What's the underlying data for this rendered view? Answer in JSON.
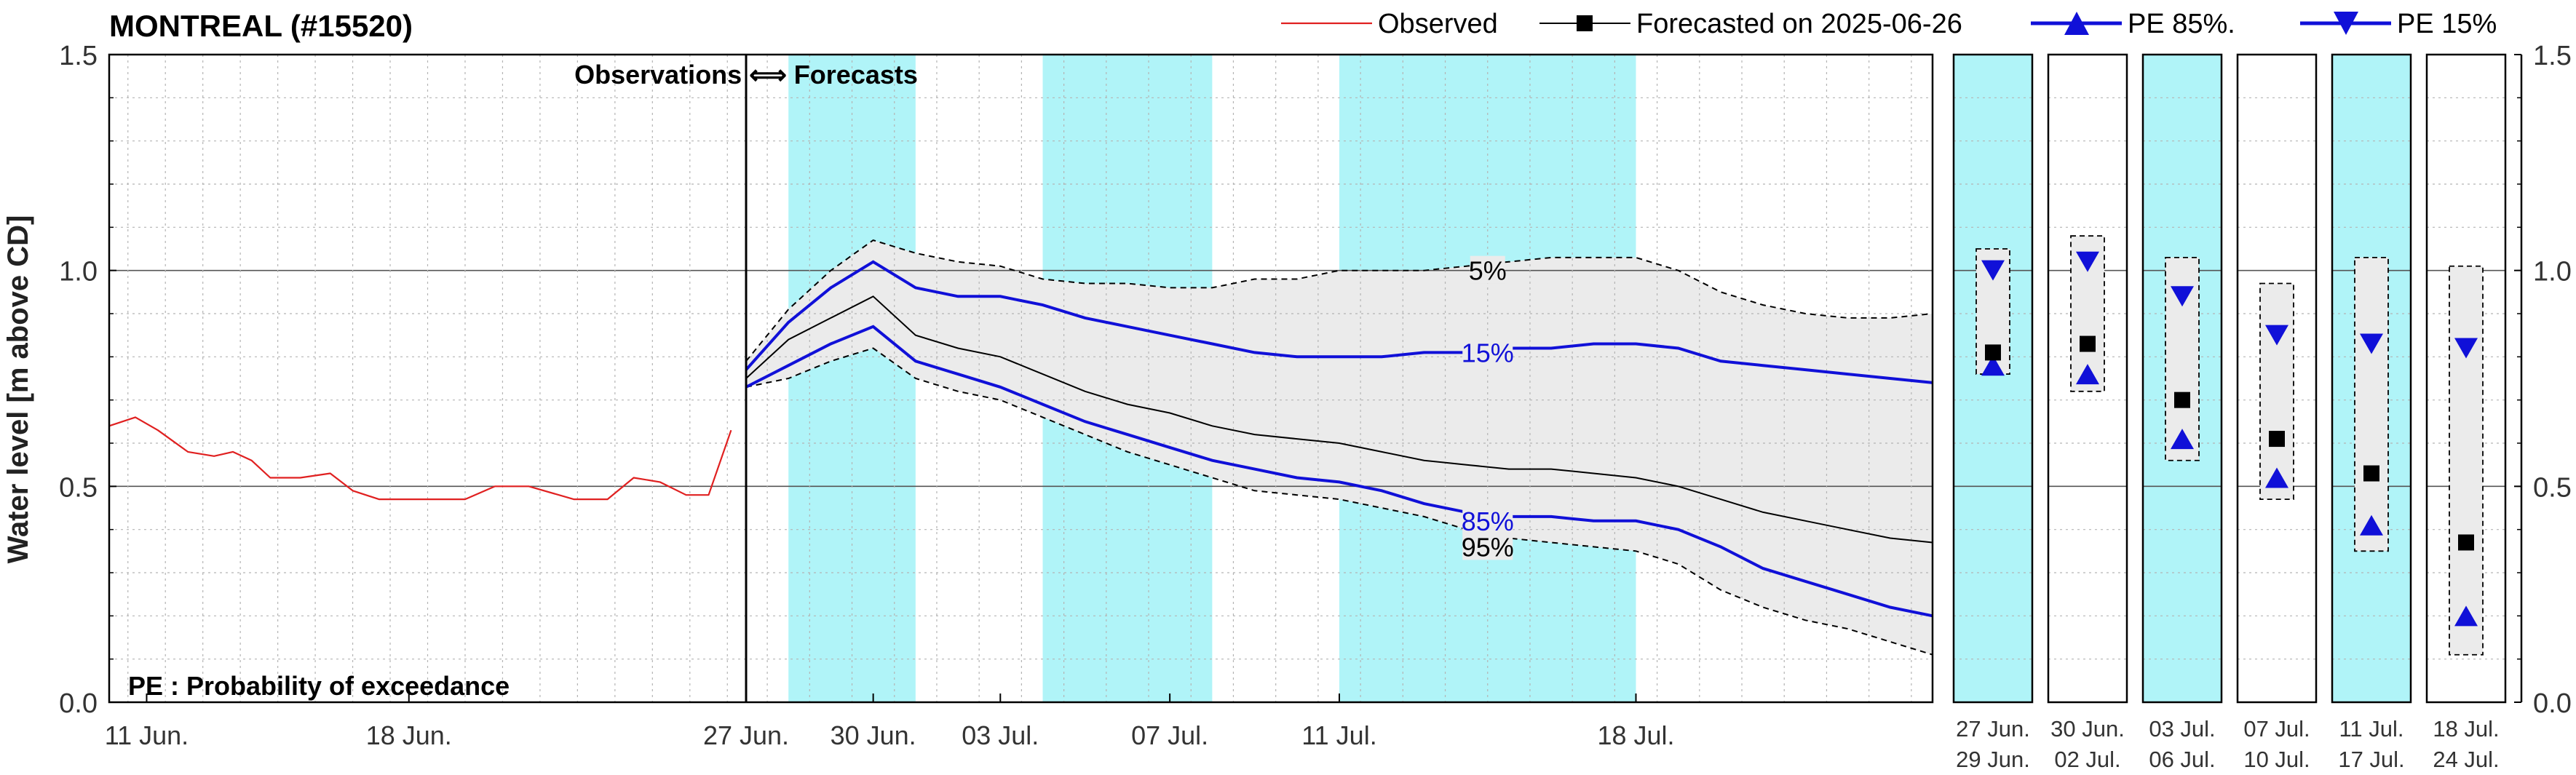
{
  "colors": {
    "observed": "#e02020",
    "forecast": "#000000",
    "pe_line": "#1010d8",
    "band_fill": "#ebebeb",
    "weekend": "#b0f4f8",
    "grid": "#b4b4b4"
  },
  "legend": {
    "observed": "Observed",
    "forecasted": "Forecasted on 2025-06-26",
    "pe85": "PE 85%.",
    "pe15": "PE 15%"
  },
  "chart_data": {
    "type": "line",
    "title": "MONTREAL (#15520)",
    "ylabel": "Water level [m above CD]",
    "ylim": [
      0,
      1.5
    ],
    "y_ticks": [
      "0.0",
      "0.5",
      "1.0",
      "1.5"
    ],
    "grid": true,
    "legend_position": "top",
    "divider_label": "Observations ⟺ Forecasts",
    "footnote": "PE : Probability of exceedance",
    "observed_x_ticks": [
      {
        "day": 11,
        "label": "11 Jun."
      },
      {
        "day": 18,
        "label": "18 Jun."
      }
    ],
    "forecast_x_ticks": [
      {
        "day": 27,
        "label": "27 Jun."
      },
      {
        "day": 30,
        "label": "30 Jun."
      },
      {
        "day": 33,
        "label": "03 Jul."
      },
      {
        "day": 37,
        "label": "07 Jul."
      },
      {
        "day": 41,
        "label": "11 Jul."
      },
      {
        "day": 48,
        "label": "18 Jul."
      }
    ],
    "observed_series": {
      "name": "Observed",
      "day": [
        10.0,
        10.7,
        11.3,
        12.1,
        12.8,
        13.3,
        13.8,
        14.3,
        15.1,
        15.9,
        16.5,
        17.2,
        17.9,
        18.8,
        19.5,
        20.3,
        21.2,
        22.4,
        23.3,
        24.0,
        24.7,
        25.4,
        26.0,
        26.6
      ],
      "level": [
        0.64,
        0.66,
        0.63,
        0.58,
        0.57,
        0.58,
        0.56,
        0.52,
        0.52,
        0.53,
        0.49,
        0.47,
        0.47,
        0.47,
        0.47,
        0.5,
        0.5,
        0.47,
        0.47,
        0.52,
        0.51,
        0.48,
        0.48,
        0.63
      ]
    },
    "forecast_days": [
      27,
      28,
      29,
      30,
      31,
      32,
      33,
      34,
      35,
      36,
      37,
      38,
      39,
      40,
      41,
      42,
      43,
      44,
      45,
      46,
      47,
      48,
      49,
      50,
      51,
      52,
      53,
      54,
      55
    ],
    "pe_series": [
      {
        "name": "5%",
        "level": [
          0.79,
          0.91,
          1.0,
          1.07,
          1.04,
          1.02,
          1.01,
          0.98,
          0.97,
          0.97,
          0.96,
          0.96,
          0.98,
          0.98,
          1.0,
          1.0,
          1.0,
          1.01,
          1.02,
          1.03,
          1.03,
          1.03,
          1.0,
          0.95,
          0.92,
          0.9,
          0.89,
          0.89,
          0.9
        ]
      },
      {
        "name": "15%",
        "level": [
          0.77,
          0.88,
          0.96,
          1.02,
          0.96,
          0.94,
          0.94,
          0.92,
          0.89,
          0.87,
          0.85,
          0.83,
          0.81,
          0.8,
          0.8,
          0.8,
          0.81,
          0.81,
          0.82,
          0.82,
          0.83,
          0.83,
          0.82,
          0.79,
          0.78,
          0.77,
          0.76,
          0.75,
          0.74
        ]
      },
      {
        "name": "Forecasted on 2025-06-26",
        "level": [
          0.75,
          0.84,
          0.89,
          0.94,
          0.85,
          0.82,
          0.8,
          0.76,
          0.72,
          0.69,
          0.67,
          0.64,
          0.62,
          0.61,
          0.6,
          0.58,
          0.56,
          0.55,
          0.54,
          0.54,
          0.53,
          0.52,
          0.5,
          0.47,
          0.44,
          0.42,
          0.4,
          0.38,
          0.37
        ]
      },
      {
        "name": "85%",
        "level": [
          0.73,
          0.78,
          0.83,
          0.87,
          0.79,
          0.76,
          0.73,
          0.69,
          0.65,
          0.62,
          0.59,
          0.56,
          0.54,
          0.52,
          0.51,
          0.49,
          0.46,
          0.44,
          0.43,
          0.43,
          0.42,
          0.42,
          0.4,
          0.36,
          0.31,
          0.28,
          0.25,
          0.22,
          0.2
        ]
      },
      {
        "name": "95%",
        "level": [
          0.73,
          0.75,
          0.79,
          0.82,
          0.75,
          0.72,
          0.7,
          0.66,
          0.62,
          0.58,
          0.55,
          0.52,
          0.49,
          0.48,
          0.47,
          0.45,
          0.43,
          0.4,
          0.38,
          0.37,
          0.36,
          0.35,
          0.32,
          0.26,
          0.22,
          0.19,
          0.17,
          0.14,
          0.11
        ]
      }
    ],
    "curve_labels": [
      {
        "series": "5%",
        "text": "5%",
        "day": 44.5,
        "level": 1.0
      },
      {
        "series": "15%",
        "text": "15%",
        "day": 44.5,
        "level": 0.81
      },
      {
        "series": "85%",
        "text": "85%",
        "day": 44.5,
        "level": 0.42
      },
      {
        "series": "95%",
        "text": "95%",
        "day": 44.5,
        "level": 0.36
      }
    ],
    "weekend_bands": [
      [
        28,
        31
      ],
      [
        34,
        38
      ],
      [
        41,
        48
      ]
    ],
    "periods": [
      {
        "label_top": "27 Jun.",
        "label_bottom": "29 Jun.",
        "highlight": true,
        "box": [
          0.76,
          1.05
        ],
        "pe15": 1.0,
        "forecast": 0.81,
        "pe85": 0.78
      },
      {
        "label_top": "30 Jun.",
        "label_bottom": "02 Jul.",
        "highlight": false,
        "box": [
          0.72,
          1.08
        ],
        "pe15": 1.02,
        "forecast": 0.83,
        "pe85": 0.76
      },
      {
        "label_top": "03 Jul.",
        "label_bottom": "06 Jul.",
        "highlight": true,
        "box": [
          0.56,
          1.03
        ],
        "pe15": 0.94,
        "forecast": 0.7,
        "pe85": 0.61
      },
      {
        "label_top": "07 Jul.",
        "label_bottom": "10 Jul.",
        "highlight": false,
        "box": [
          0.47,
          0.97
        ],
        "pe15": 0.85,
        "forecast": 0.61,
        "pe85": 0.52
      },
      {
        "label_top": "11 Jul.",
        "label_bottom": "17 Jul.",
        "highlight": true,
        "box": [
          0.35,
          1.03
        ],
        "pe15": 0.83,
        "forecast": 0.53,
        "pe85": 0.41
      },
      {
        "label_top": "18 Jul.",
        "label_bottom": "24 Jul.",
        "highlight": false,
        "box": [
          0.11,
          1.01
        ],
        "pe15": 0.82,
        "forecast": 0.37,
        "pe85": 0.2
      }
    ]
  }
}
